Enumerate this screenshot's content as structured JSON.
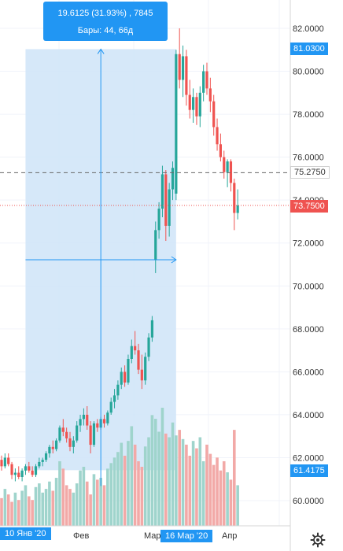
{
  "tooltip": {
    "line1": "19.6125 (31.93%) , 7845",
    "line2": "Бары: 44, 66д"
  },
  "price_axis": {
    "ticks": [
      "82.0000",
      "80.0000",
      "78.0000",
      "76.0000",
      "74.0000",
      "72.0000",
      "70.0000",
      "68.0000",
      "66.0000",
      "64.0000",
      "62.0000",
      "60.0000"
    ],
    "tags": {
      "high": "81.0300",
      "dashed": "75.2750",
      "last": "73.7500",
      "low": "61.4175"
    }
  },
  "time_axis": {
    "start_tag": "10 Янв '20",
    "end_tag": "16 Мар '20",
    "labels": [
      "Фев",
      "Мар",
      "Апр"
    ]
  },
  "icons": {
    "settings": "gear-icon"
  },
  "colors": {
    "up": "#26a69a",
    "down": "#ef5350",
    "measure": "#2196f3",
    "range_fill": "#cfe4f8"
  },
  "chart_data": {
    "type": "candlestick",
    "ylim": [
      59.0,
      82.6
    ],
    "candles": [
      [
        61.9,
        62.1,
        61.4,
        61.6
      ],
      [
        61.6,
        62.2,
        61.5,
        62.0
      ],
      [
        62.0,
        62.2,
        61.6,
        61.7
      ],
      [
        61.7,
        61.8,
        61.0,
        61.2
      ],
      [
        61.2,
        61.5,
        60.9,
        61.3
      ],
      [
        61.3,
        61.6,
        61.0,
        61.1
      ],
      [
        61.1,
        61.5,
        60.9,
        61.4
      ],
      [
        61.4,
        61.7,
        61.2,
        61.6
      ],
      [
        61.6,
        61.8,
        61.3,
        61.4
      ],
      [
        61.4,
        61.6,
        61.1,
        61.2
      ],
      [
        61.2,
        61.7,
        61.1,
        61.6
      ],
      [
        61.6,
        62.0,
        61.5,
        61.8
      ],
      [
        61.8,
        62.0,
        61.6,
        61.9
      ],
      [
        61.9,
        62.3,
        61.8,
        62.2
      ],
      [
        62.2,
        62.6,
        62.0,
        62.5
      ],
      [
        62.5,
        62.8,
        62.2,
        62.4
      ],
      [
        62.4,
        62.9,
        62.3,
        62.8
      ],
      [
        62.8,
        63.5,
        62.7,
        63.4
      ],
      [
        63.4,
        63.8,
        63.0,
        63.2
      ],
      [
        63.2,
        63.4,
        62.7,
        62.9
      ],
      [
        62.9,
        63.2,
        62.3,
        62.5
      ],
      [
        62.5,
        63.0,
        62.2,
        62.8
      ],
      [
        62.8,
        63.7,
        62.7,
        63.5
      ],
      [
        63.5,
        64.0,
        63.2,
        63.8
      ],
      [
        63.8,
        64.3,
        63.5,
        64.0
      ],
      [
        64.0,
        64.4,
        63.3,
        63.5
      ],
      [
        63.5,
        63.7,
        62.2,
        62.6
      ],
      [
        62.6,
        63.7,
        62.5,
        63.6
      ],
      [
        63.6,
        63.8,
        63.2,
        63.4
      ],
      [
        63.4,
        63.9,
        63.3,
        63.8
      ],
      [
        63.8,
        64.0,
        63.4,
        63.6
      ],
      [
        63.6,
        64.2,
        63.5,
        64.1
      ],
      [
        64.1,
        64.8,
        64.0,
        64.6
      ],
      [
        64.6,
        65.2,
        64.3,
        64.9
      ],
      [
        64.9,
        65.6,
        64.7,
        65.4
      ],
      [
        65.4,
        66.2,
        65.2,
        66.0
      ],
      [
        66.0,
        66.3,
        65.3,
        65.5
      ],
      [
        65.5,
        66.8,
        65.4,
        66.6
      ],
      [
        66.6,
        67.5,
        66.4,
        67.2
      ],
      [
        67.2,
        67.9,
        66.8,
        67.0
      ],
      [
        67.0,
        67.3,
        65.9,
        66.1
      ],
      [
        66.1,
        66.8,
        65.2,
        65.6
      ],
      [
        65.6,
        66.9,
        65.4,
        66.7
      ],
      [
        66.7,
        67.8,
        66.5,
        67.6
      ],
      [
        67.6,
        68.6,
        67.4,
        68.4
      ],
      [
        71.2,
        73.0,
        70.6,
        72.6
      ],
      [
        72.6,
        73.9,
        72.2,
        73.6
      ],
      [
        73.6,
        75.6,
        73.2,
        75.2
      ],
      [
        75.2,
        75.4,
        72.1,
        72.8
      ],
      [
        72.8,
        74.8,
        72.3,
        74.5
      ],
      [
        74.5,
        75.8,
        74.0,
        75.5
      ],
      [
        74.3,
        81.0,
        74.0,
        80.8
      ],
      [
        80.8,
        82.0,
        79.2,
        79.6
      ],
      [
        79.6,
        81.2,
        78.8,
        80.7
      ],
      [
        80.7,
        81.0,
        78.4,
        78.9
      ],
      [
        78.9,
        79.6,
        77.8,
        78.2
      ],
      [
        78.2,
        79.2,
        77.6,
        78.8
      ],
      [
        78.8,
        79.0,
        77.5,
        77.9
      ],
      [
        77.9,
        79.3,
        77.4,
        79.0
      ],
      [
        79.0,
        80.3,
        78.6,
        80.0
      ],
      [
        80.0,
        80.4,
        78.9,
        79.2
      ],
      [
        79.2,
        79.7,
        78.1,
        78.6
      ],
      [
        78.6,
        78.9,
        77.0,
        77.4
      ],
      [
        77.4,
        77.8,
        76.3,
        76.6
      ],
      [
        76.6,
        77.1,
        75.8,
        76.0
      ],
      [
        76.0,
        76.3,
        75.0,
        75.3
      ],
      [
        75.3,
        75.9,
        74.6,
        75.8
      ],
      [
        75.8,
        75.9,
        74.4,
        74.8
      ],
      [
        74.8,
        75.0,
        72.6,
        73.4
      ],
      [
        73.4,
        74.5,
        73.1,
        73.75
      ]
    ],
    "volumes": [
      30,
      40,
      34,
      26,
      36,
      28,
      38,
      44,
      32,
      28,
      42,
      46,
      36,
      40,
      48,
      38,
      52,
      70,
      62,
      44,
      40,
      36,
      46,
      60,
      64,
      48,
      34,
      56,
      50,
      52,
      44,
      62,
      68,
      74,
      80,
      90,
      76,
      92,
      108,
      88,
      70,
      64,
      86,
      96,
      120,
      116,
      102,
      128,
      100,
      96,
      112,
      98,
      104,
      94,
      88,
      76,
      92,
      84,
      96,
      70,
      88,
      78,
      66,
      74,
      60,
      70,
      58,
      50,
      104,
      44
    ],
    "measure": {
      "from": 61.4175,
      "to": 81.03,
      "change": 19.6125,
      "change_pct": 31.93,
      "volume": 7845,
      "bars": 44,
      "days": 66
    },
    "dashed_level": 75.275,
    "last_price": 73.75
  }
}
